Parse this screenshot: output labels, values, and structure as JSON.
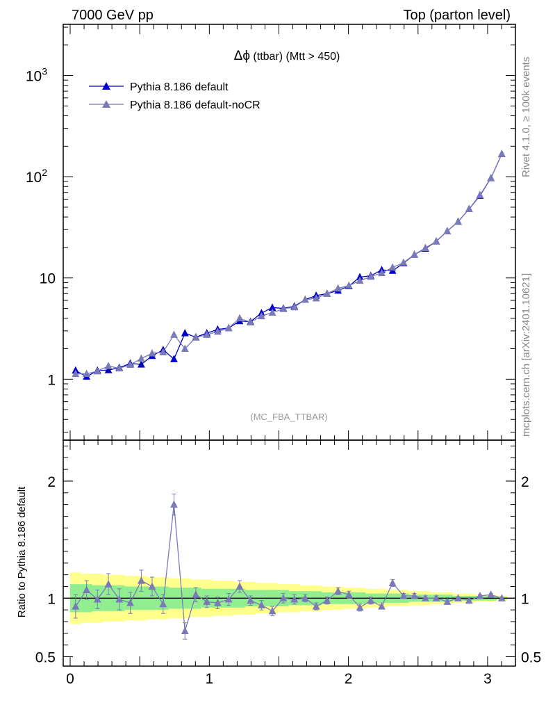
{
  "header": {
    "left": "7000 GeV pp",
    "right": "Top (parton level)"
  },
  "side_labels": {
    "rivet": "Rivet 4.1.0, ≥ 100k events",
    "mcplots": "mcplots.cern.ch [arXiv:2401.10621]"
  },
  "chart_data": [
    {
      "type": "line",
      "panel": "main",
      "title": "Δϕ (ttbar) (Mtt > 450)",
      "title_symbol": "Δϕ",
      "title_rest": " (ttbar) (Mtt > 450)",
      "annotation": "(MC_FBA_TTBAR)",
      "yscale": "log",
      "ylim": [
        0.25,
        3200
      ],
      "xlim": [
        -0.05,
        3.2
      ],
      "yticks": [
        {
          "value": 1,
          "label": "1"
        },
        {
          "value": 10,
          "label": "10"
        },
        {
          "value": 100,
          "label": "10",
          "exp": "2"
        },
        {
          "value": 1000,
          "label": "10",
          "exp": "3"
        }
      ],
      "x": [
        0.039,
        0.118,
        0.196,
        0.275,
        0.353,
        0.432,
        0.511,
        0.589,
        0.668,
        0.746,
        0.825,
        0.903,
        0.982,
        1.06,
        1.139,
        1.218,
        1.296,
        1.375,
        1.453,
        1.532,
        1.611,
        1.689,
        1.768,
        1.846,
        1.925,
        2.003,
        2.082,
        2.16,
        2.239,
        2.317,
        2.396,
        2.474,
        2.553,
        2.631,
        2.71,
        2.788,
        2.867,
        2.945,
        3.024,
        3.102
      ],
      "series": [
        {
          "name": "Pythia 8.186 default",
          "color": "#0000cc",
          "values": [
            1.22,
            1.06,
            1.22,
            1.23,
            1.3,
            1.43,
            1.4,
            1.7,
            1.95,
            1.58,
            2.85,
            2.6,
            2.85,
            3.1,
            3.2,
            3.75,
            3.7,
            4.5,
            5.1,
            5.0,
            5.25,
            6.1,
            6.7,
            7.0,
            7.5,
            8.3,
            10.2,
            10.5,
            12.0,
            11.8,
            14.0,
            17.0,
            19.5,
            23.0,
            29.0,
            36.0,
            48.0,
            65.0,
            97.0,
            168.0
          ]
        },
        {
          "name": "Pythia 8.186 default-noCR",
          "color": "#7a7ab8",
          "values": [
            1.13,
            1.13,
            1.2,
            1.35,
            1.28,
            1.39,
            1.6,
            1.8,
            1.85,
            2.75,
            2.0,
            2.58,
            2.75,
            2.95,
            3.2,
            4.0,
            3.65,
            4.2,
            4.55,
            4.95,
            5.15,
            6.1,
            6.3,
            7.0,
            7.9,
            8.4,
            9.4,
            10.3,
            11.2,
            12.7,
            14.2,
            17.0,
            19.8,
            23.0,
            29.0,
            36.0,
            48.0,
            66.0,
            97.0,
            168.0
          ]
        }
      ]
    },
    {
      "type": "line",
      "panel": "ratio",
      "ylabel": "Ratio to Pythia 8.186 default",
      "ylim": [
        0.42,
        2.35
      ],
      "xlim": [
        -0.05,
        3.2
      ],
      "xticks": [
        0,
        1,
        2,
        3
      ],
      "yticks": [
        0.5,
        1,
        2
      ],
      "reference": 1,
      "series": [
        {
          "name": "Pythia 8.186 default-noCR",
          "color": "#7a7ab8",
          "values": [
            0.93,
            1.07,
            0.99,
            1.12,
            0.99,
            0.96,
            1.15,
            1.1,
            0.95,
            1.8,
            0.72,
            1.03,
            0.97,
            0.96,
            0.99,
            1.1,
            0.98,
            0.94,
            0.89,
            1.0,
            0.99,
            1.0,
            0.93,
            0.98,
            1.06,
            1.03,
            0.92,
            0.98,
            0.93,
            1.13,
            1.02,
            1.02,
            1.0,
            1.0,
            0.97,
            1.0,
            0.98,
            1.02,
            1.03,
            1.0
          ],
          "errors": [
            0.1,
            0.08,
            0.08,
            0.09,
            0.09,
            0.09,
            0.09,
            0.08,
            0.08,
            0.09,
            0.07,
            0.06,
            0.05,
            0.05,
            0.05,
            0.05,
            0.04,
            0.04,
            0.04,
            0.04,
            0.04,
            0.03,
            0.03,
            0.03,
            0.03,
            0.03,
            0.03,
            0.03,
            0.02,
            0.03,
            0.02,
            0.02,
            0.02,
            0.02,
            0.02,
            0.01,
            0.01,
            0.01,
            0.01,
            0.01
          ]
        }
      ],
      "band_1sigma": [
        0.12,
        0.12,
        0.11,
        0.11,
        0.11,
        0.1,
        0.1,
        0.1,
        0.1,
        0.09,
        0.09,
        0.09,
        0.08,
        0.08,
        0.08,
        0.08,
        0.07,
        0.07,
        0.07,
        0.07,
        0.06,
        0.06,
        0.06,
        0.05,
        0.05,
        0.05,
        0.05,
        0.04,
        0.04,
        0.04,
        0.04,
        0.03,
        0.03,
        0.03,
        0.03,
        0.02,
        0.02,
        0.02,
        0.02,
        0.01
      ],
      "band_2sigma": [
        0.22,
        0.21,
        0.21,
        0.2,
        0.2,
        0.19,
        0.19,
        0.18,
        0.18,
        0.17,
        0.17,
        0.16,
        0.16,
        0.15,
        0.15,
        0.14,
        0.14,
        0.13,
        0.13,
        0.12,
        0.12,
        0.11,
        0.11,
        0.1,
        0.1,
        0.09,
        0.09,
        0.08,
        0.08,
        0.07,
        0.07,
        0.06,
        0.06,
        0.05,
        0.05,
        0.04,
        0.04,
        0.03,
        0.03,
        0.02
      ]
    }
  ],
  "colors": {
    "band_inner": "#90ee90",
    "band_outer": "#ffff8c",
    "frame": "#000000"
  }
}
